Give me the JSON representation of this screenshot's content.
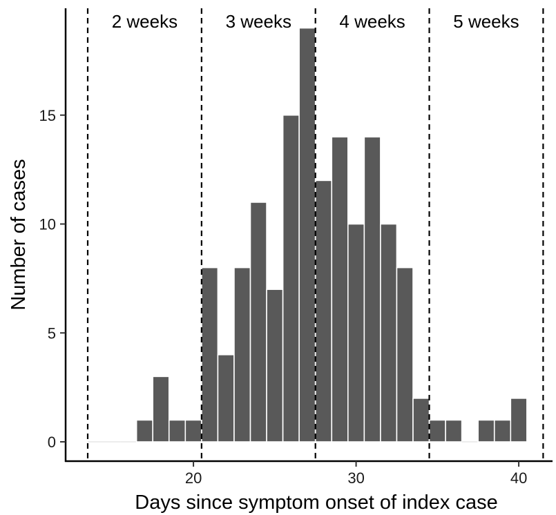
{
  "chart_data": {
    "type": "bar",
    "title": "",
    "xlabel": "Days since symptom onset of index case",
    "ylabel": "Number of cases",
    "xlim": [
      13.5,
      41.5
    ],
    "ylim": [
      0,
      19
    ],
    "x_ticks": [
      20,
      30,
      40
    ],
    "y_ticks": [
      0,
      5,
      10,
      15
    ],
    "grid": false,
    "bar_width": 1,
    "x": [
      14,
      15,
      16,
      17,
      18,
      19,
      20,
      21,
      22,
      23,
      24,
      25,
      26,
      27,
      28,
      29,
      30,
      31,
      32,
      33,
      34,
      35,
      36,
      37,
      38,
      39,
      40
    ],
    "values": [
      0,
      0,
      0,
      1,
      3,
      1,
      1,
      8,
      4,
      8,
      11,
      7,
      15,
      19,
      12,
      14,
      10,
      14,
      10,
      8,
      2,
      1,
      1,
      0,
      1,
      1,
      2
    ],
    "vlines": [
      13.5,
      20.5,
      27.5,
      34.5,
      41.5
    ],
    "period_labels": [
      {
        "text": "2 weeks",
        "x": 17
      },
      {
        "text": "3 weeks",
        "x": 24
      },
      {
        "text": "4 weeks",
        "x": 31
      },
      {
        "text": "5 weeks",
        "x": 38
      }
    ],
    "bar_color": "#595959",
    "bar_edge_color": "#ffffff"
  }
}
